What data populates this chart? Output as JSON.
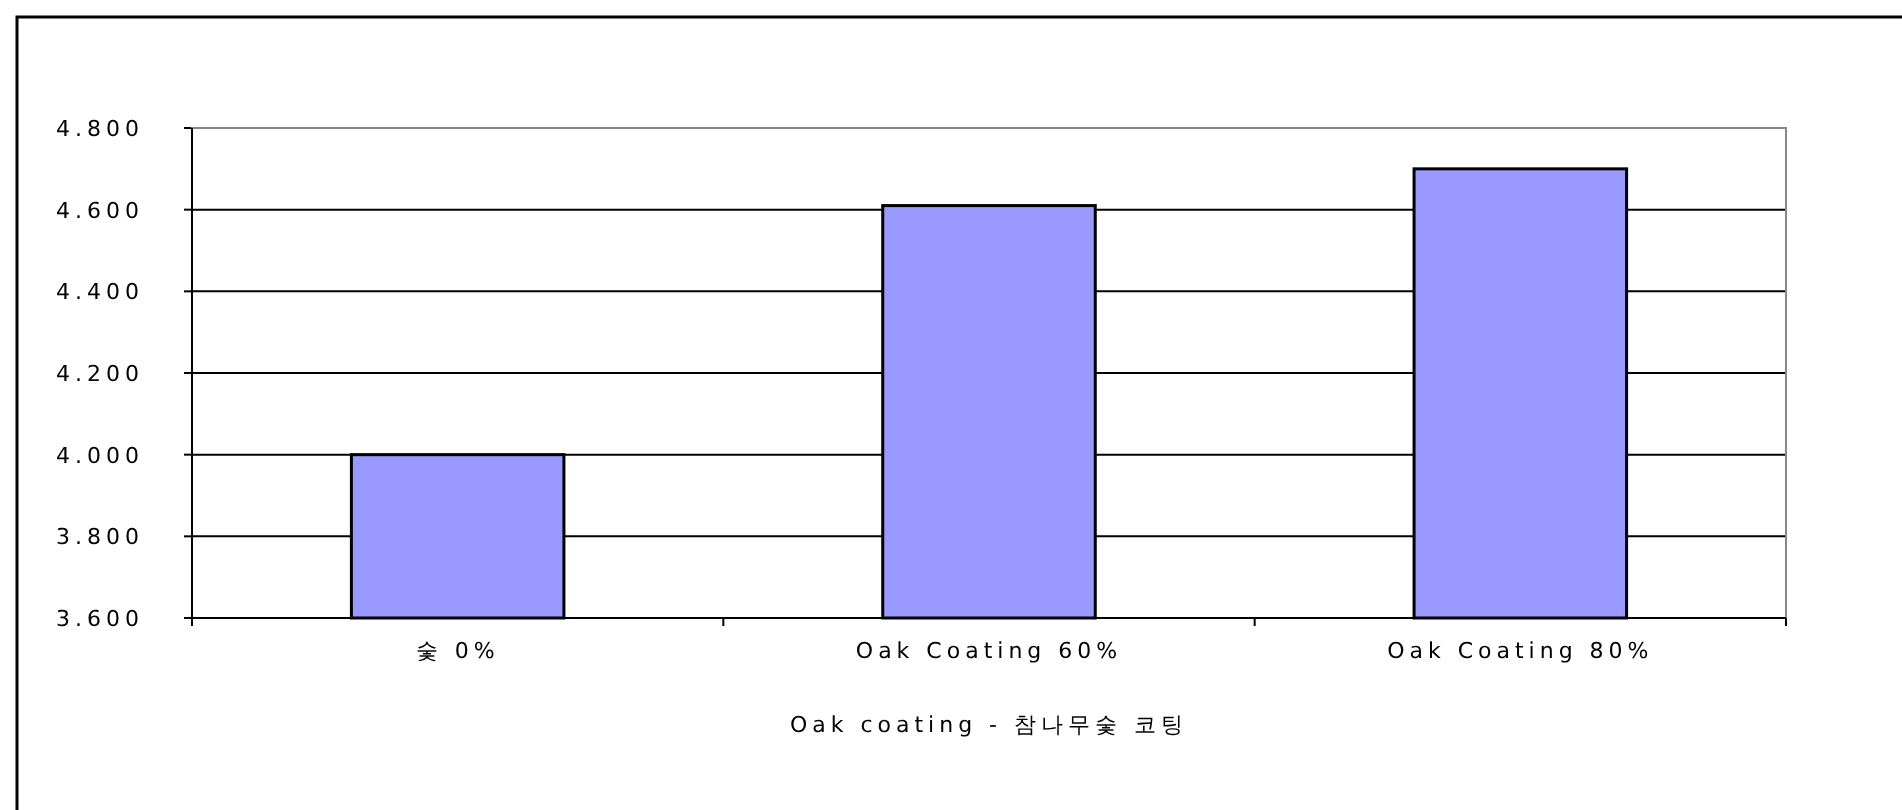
{
  "chart_data": {
    "type": "bar",
    "xlabel": "Oak coating - 참나무숯 코팅",
    "categories": [
      "숯 0%",
      "Oak Coating 60%",
      "Oak Coating 80%"
    ],
    "values": [
      4.0,
      4.61,
      4.7
    ],
    "color": "#9999ff",
    "ylim": [
      3.6,
      4.8
    ],
    "yticks": [
      {
        "value": 3.6,
        "label": "3.600"
      },
      {
        "value": 3.8,
        "label": "3.800"
      },
      {
        "value": 4.0,
        "label": "4.000"
      },
      {
        "value": 4.2,
        "label": "4.200"
      },
      {
        "value": 4.4,
        "label": "4.400"
      },
      {
        "value": 4.6,
        "label": "4.600"
      },
      {
        "value": 4.8,
        "label": "4.800"
      }
    ],
    "grid": "y"
  }
}
